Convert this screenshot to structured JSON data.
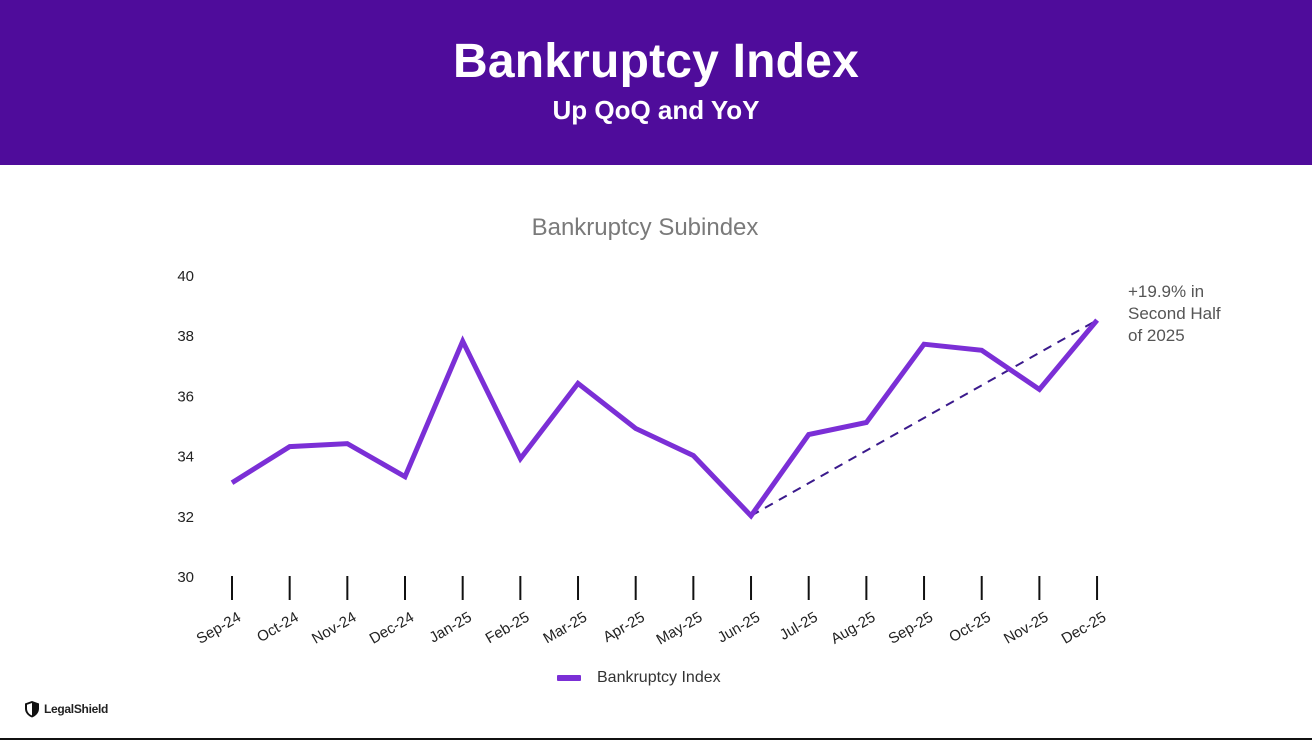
{
  "header": {
    "title": "Bankruptcy Index",
    "subtitle": "Up QoQ and YoY"
  },
  "annotation": {
    "text": "+19.9% in\nSecond Half\nof 2025"
  },
  "logo": {
    "text": "LegalShield",
    "icon": "shield-icon"
  },
  "colors": {
    "header_bg": "#4f0c9b",
    "series": "#7b2fd6",
    "trendline": "#3b1a8c"
  },
  "chart_data": {
    "type": "line",
    "title": "Bankruptcy Subindex",
    "xlabel": "",
    "ylabel": "",
    "categories": [
      "Sep-24",
      "Oct-24",
      "Nov-24",
      "Dec-24",
      "Jan-25",
      "Feb-25",
      "Mar-25",
      "Apr-25",
      "May-25",
      "Jun-25",
      "Jul-25",
      "Aug-25",
      "Sep-25",
      "Oct-25",
      "Nov-25",
      "Dec-25"
    ],
    "series": [
      {
        "name": "Bankruptcy Index",
        "values": [
          33.1,
          34.3,
          34.4,
          33.3,
          37.8,
          33.9,
          36.4,
          34.9,
          34.0,
          32.0,
          34.7,
          35.1,
          37.7,
          37.5,
          36.2,
          38.5
        ]
      }
    ],
    "trendline": {
      "from": "Jun-25",
      "to": "Dec-25",
      "style": "dashed"
    },
    "ylim": [
      30,
      40
    ],
    "yticks": [
      30,
      32,
      34,
      36,
      38,
      40
    ],
    "grid": false,
    "legend": "bottom"
  }
}
